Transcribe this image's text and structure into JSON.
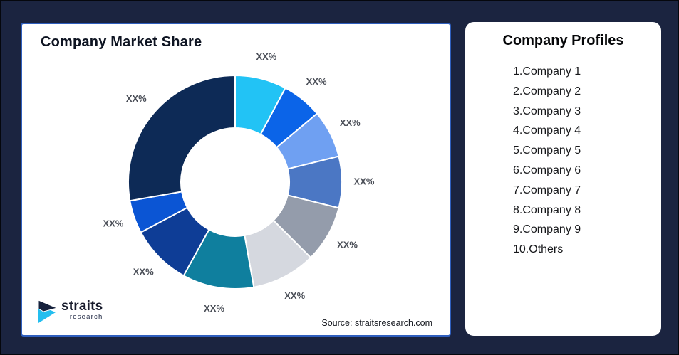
{
  "market_share_card": {
    "title": "Company Market Share",
    "source": "Source: straitsresearch.com",
    "logo": {
      "name": "straits",
      "sub": "research"
    }
  },
  "profiles_card": {
    "title": "Company Profiles",
    "items": [
      "1.Company 1",
      "2.Company 2",
      "3.Company 3",
      "4.Company 4",
      "5.Company 5",
      "6.Company 6",
      "7.Company 7",
      "8.Company 8",
      "9.Company 9",
      "10.Others"
    ]
  },
  "chart_data": {
    "type": "pie",
    "donut": true,
    "title": "Company Market Share",
    "start_angle_deg": 0,
    "direction": "clockwise",
    "categories": [
      "Company 1",
      "Company 2",
      "Company 3",
      "Company 4",
      "Company 5",
      "Company 6",
      "Company 7",
      "Company 8",
      "Company 9",
      "Others"
    ],
    "values_pct_estimated": [
      7.8,
      6.1,
      7.2,
      7.8,
      8.6,
      9.7,
      10.8,
      9.2,
      5.0,
      27.8
    ],
    "data_labels": [
      "XX%",
      "XX%",
      "XX%",
      "XX%",
      "XX%",
      "XX%",
      "XX%",
      "XX%",
      "XX%",
      "XX%"
    ],
    "colors": [
      "#22C3F5",
      "#0B64E8",
      "#6FA0F2",
      "#4B77C4",
      "#949CAB",
      "#D5D8DF",
      "#0F7F9E",
      "#0E3D96",
      "#0B55D4",
      "#0D2A56"
    ],
    "label_color": "#4A4E57",
    "legend_position": "none",
    "grid": false
  },
  "page": {
    "background": "#1B2440",
    "card_border": "#2F5FBE",
    "logo_navy": "#16213C",
    "logo_cyan": "#24BEEF"
  }
}
